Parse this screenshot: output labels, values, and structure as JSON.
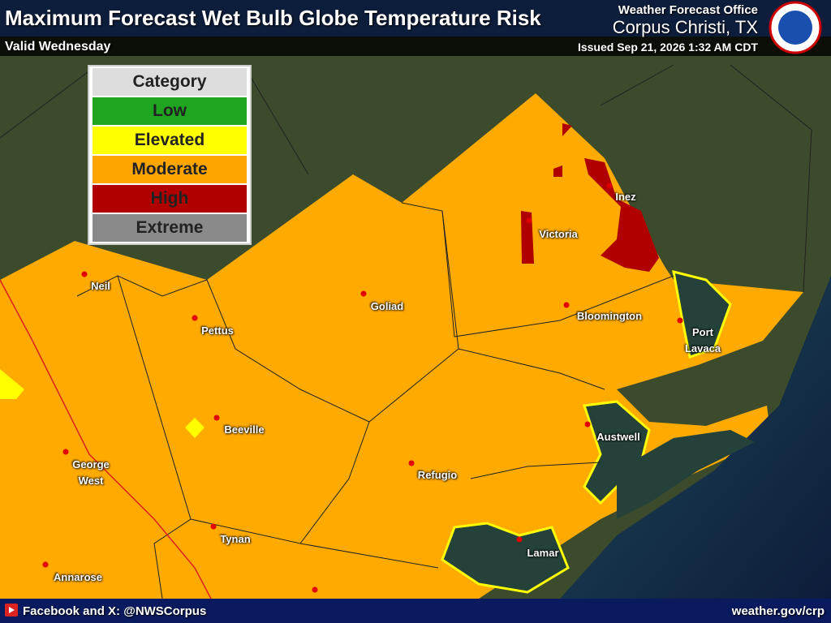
{
  "header": {
    "title": "Maximum Forecast Wet Bulb Globe Temperature Risk",
    "valid": "Valid Wednesday",
    "office": "Weather Forecast Office",
    "location": "Corpus Christi, TX",
    "issued": "Issued Sep 21, 2026 1:32 AM CDT"
  },
  "legend": {
    "title": "Category",
    "categories": [
      {
        "label": "Low",
        "color": "#1fa51f"
      },
      {
        "label": "Elevated",
        "color": "#ffff00"
      },
      {
        "label": "Moderate",
        "color": "#ffa500"
      },
      {
        "label": "High",
        "color": "#b00000"
      },
      {
        "label": "Extreme",
        "color": "#8a8a8a"
      }
    ]
  },
  "cities": [
    "Inez",
    "Victoria",
    "Goliad",
    "Neil",
    "Pettus",
    "Bloomington",
    "Port\nLavaca",
    "Beeville",
    "Austwell",
    "George\nWest",
    "Refugio",
    "Tynan",
    "Lamar",
    "Annarose"
  ],
  "footer": {
    "social": "Facebook and X: @NWSCorpus",
    "website": "weather.gov/crp"
  }
}
